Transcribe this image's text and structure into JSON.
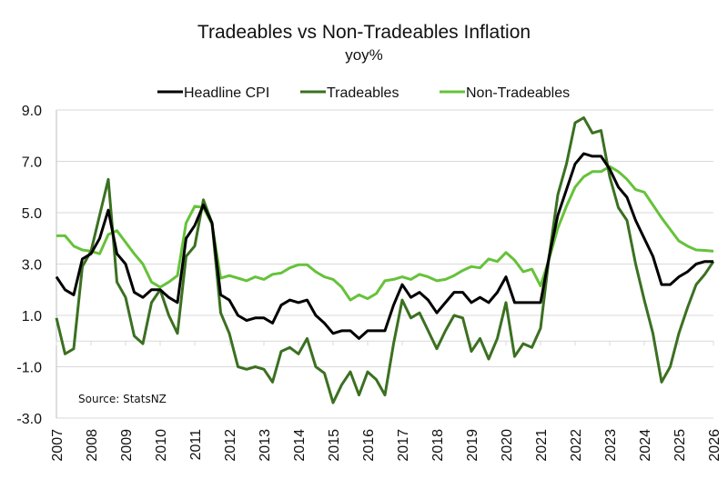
{
  "chart_data": {
    "type": "line",
    "title": "Tradeables vs Non-Tradeables Inflation",
    "subtitle": "yoy%",
    "xlabel": "",
    "ylabel": "",
    "source": "Source: StatsNZ",
    "legend_position": "top",
    "grid": "horizontal",
    "ylim": [
      -3.0,
      9.0
    ],
    "yticks": [
      "9.0",
      "7.0",
      "5.0",
      "3.0",
      "1.0",
      "-1.0",
      "-3.0"
    ],
    "ytick_values": [
      9,
      7,
      5,
      3,
      1,
      -1,
      -3
    ],
    "xticks": [
      "2007",
      "2008",
      "2009",
      "2010",
      "2011",
      "2012",
      "2013",
      "2014",
      "2015",
      "2016",
      "2017",
      "2018",
      "2019",
      "2020",
      "2021",
      "2022",
      "2023",
      "2024",
      "2025",
      "2026"
    ],
    "x_frequency": "quarterly",
    "x_start": "2007 Q1",
    "series": [
      {
        "name": "Headline CPI",
        "color": "#000000",
        "values": [
          2.5,
          2.0,
          1.8,
          3.2,
          3.4,
          4.0,
          5.1,
          3.4,
          3.0,
          1.9,
          1.7,
          2.0,
          2.0,
          1.7,
          1.5,
          4.0,
          4.5,
          5.3,
          4.6,
          1.8,
          1.6,
          1.0,
          0.8,
          0.9,
          0.9,
          0.7,
          1.4,
          1.6,
          1.5,
          1.6,
          1.0,
          0.7,
          0.3,
          0.4,
          0.4,
          0.1,
          0.4,
          0.4,
          0.4,
          1.4,
          2.2,
          1.7,
          1.9,
          1.6,
          1.1,
          1.5,
          1.9,
          1.9,
          1.5,
          1.7,
          1.5,
          1.9,
          2.5,
          1.5,
          1.5,
          1.5,
          1.5,
          3.3,
          4.9,
          5.9,
          6.9,
          7.3,
          7.2,
          7.2,
          6.7,
          6.0,
          5.6,
          4.7,
          4.0,
          3.3,
          2.2,
          2.2,
          2.5,
          2.7,
          3.0,
          3.1,
          3.1
        ]
      },
      {
        "name": "Tradeables",
        "color": "#3b7021",
        "values": [
          0.9,
          -0.5,
          -0.3,
          2.9,
          3.5,
          4.9,
          6.3,
          2.3,
          1.7,
          0.2,
          -0.1,
          1.5,
          2.0,
          1.0,
          0.3,
          3.3,
          3.7,
          5.5,
          4.6,
          1.1,
          0.3,
          -1.0,
          -1.1,
          -1.0,
          -1.1,
          -1.6,
          -0.4,
          -0.25,
          -0.5,
          0.1,
          -1.0,
          -1.25,
          -2.4,
          -1.7,
          -1.2,
          -2.1,
          -1.2,
          -1.5,
          -2.1,
          -0.1,
          1.6,
          0.9,
          1.1,
          0.4,
          -0.3,
          0.4,
          1.0,
          0.9,
          -0.4,
          0.1,
          -0.7,
          0.1,
          1.5,
          -0.6,
          -0.1,
          -0.25,
          0.5,
          3.3,
          5.7,
          6.9,
          8.5,
          8.7,
          8.1,
          8.2,
          6.4,
          5.2,
          4.7,
          3.0,
          1.6,
          0.3,
          -1.6,
          -1.0,
          0.3,
          1.3,
          2.2,
          2.6,
          3.1
        ]
      },
      {
        "name": "Non-Tradeables",
        "color": "#66c23a",
        "values": [
          4.1,
          4.1,
          3.7,
          3.55,
          3.5,
          3.4,
          4.15,
          4.3,
          3.85,
          3.4,
          3.0,
          2.3,
          2.1,
          2.3,
          2.55,
          4.6,
          5.25,
          5.2,
          4.55,
          2.45,
          2.55,
          2.45,
          2.35,
          2.5,
          2.4,
          2.6,
          2.65,
          2.85,
          2.97,
          2.97,
          2.7,
          2.5,
          2.4,
          2.1,
          1.6,
          1.8,
          1.65,
          1.85,
          2.35,
          2.4,
          2.5,
          2.4,
          2.6,
          2.5,
          2.35,
          2.4,
          2.55,
          2.75,
          2.9,
          2.85,
          3.2,
          3.1,
          3.45,
          3.15,
          2.7,
          2.8,
          2.15,
          3.2,
          4.4,
          5.25,
          6.0,
          6.4,
          6.6,
          6.6,
          6.8,
          6.6,
          6.3,
          5.9,
          5.8,
          5.3,
          4.8,
          4.35,
          3.9,
          3.7,
          3.55,
          3.53,
          3.5
        ]
      }
    ]
  }
}
